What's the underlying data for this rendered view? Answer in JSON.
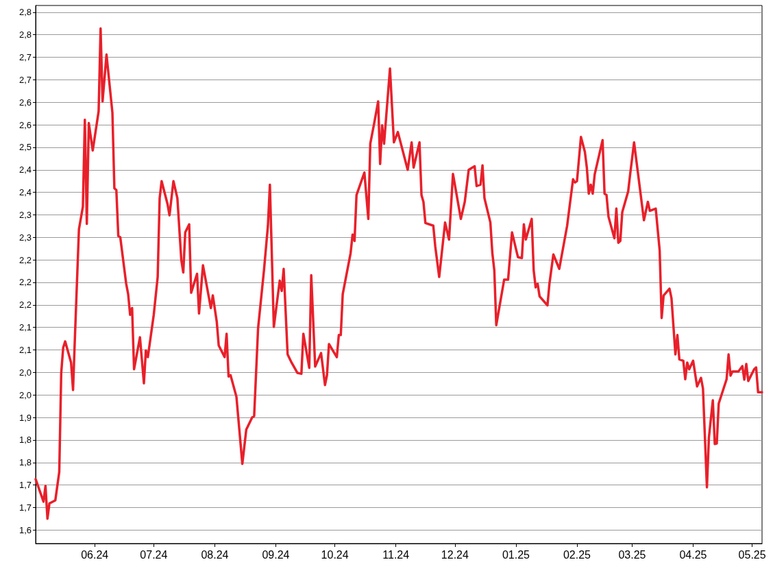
{
  "chart_data": {
    "type": "line",
    "color": "#e8202a",
    "grid": "y",
    "marker": "none",
    "line_style": "solid",
    "x": [
      "2024-05-02",
      "2024-05-06",
      "2024-05-07",
      "2024-05-08",
      "2024-05-09",
      "2024-05-12",
      "2024-05-14",
      "2024-05-15",
      "2024-05-16",
      "2024-05-17",
      "2024-05-20",
      "2024-05-21",
      "2024-05-22",
      "2024-05-24",
      "2024-05-26",
      "2024-05-27",
      "2024-05-28",
      "2024-05-29",
      "2024-05-31",
      "2024-06-03",
      "2024-06-04",
      "2024-06-05",
      "2024-06-07",
      "2024-06-10",
      "2024-06-11",
      "2024-06-12",
      "2024-06-13",
      "2024-06-14",
      "2024-06-17",
      "2024-06-18",
      "2024-06-19",
      "2024-06-20",
      "2024-06-21",
      "2024-06-24",
      "2024-06-26",
      "2024-06-27",
      "2024-06-28",
      "2024-07-01",
      "2024-07-03",
      "2024-07-04",
      "2024-07-05",
      "2024-07-08",
      "2024-07-09",
      "2024-07-11",
      "2024-07-13",
      "2024-07-15",
      "2024-07-16",
      "2024-07-17",
      "2024-07-19",
      "2024-07-20",
      "2024-07-23",
      "2024-07-24",
      "2024-07-26",
      "2024-07-30",
      "2024-07-31",
      "2024-08-02",
      "2024-08-03",
      "2024-08-06",
      "2024-08-07",
      "2024-08-08",
      "2024-08-09",
      "2024-08-12",
      "2024-08-15",
      "2024-08-17",
      "2024-08-20",
      "2024-08-21",
      "2024-08-23",
      "2024-08-26",
      "2024-08-28",
      "2024-08-29",
      "2024-08-31",
      "2024-09-03",
      "2024-09-04",
      "2024-09-05",
      "2024-09-07",
      "2024-09-09",
      "2024-09-12",
      "2024-09-14",
      "2024-09-15",
      "2024-09-18",
      "2024-09-19",
      "2024-09-21",
      "2024-09-24",
      "2024-09-26",
      "2024-09-27",
      "2024-09-28",
      "2024-10-02",
      "2024-10-03",
      "2024-10-04",
      "2024-10-05",
      "2024-10-09",
      "2024-10-10",
      "2024-10-11",
      "2024-10-12",
      "2024-10-16",
      "2024-10-18",
      "2024-10-19",
      "2024-10-21",
      "2024-10-23",
      "2024-10-24",
      "2024-10-25",
      "2024-10-26",
      "2024-10-29",
      "2024-10-31",
      "2024-11-02",
      "2024-11-07",
      "2024-11-09",
      "2024-11-10",
      "2024-11-13",
      "2024-11-14",
      "2024-11-15",
      "2024-11-16",
      "2024-11-20",
      "2024-11-21",
      "2024-11-23",
      "2024-11-26",
      "2024-11-28",
      "2024-11-30",
      "2024-12-04",
      "2024-12-06",
      "2024-12-08",
      "2024-12-11",
      "2024-12-12",
      "2024-12-14",
      "2024-12-15",
      "2024-12-16",
      "2024-12-19",
      "2024-12-20",
      "2024-12-21",
      "2024-12-22",
      "2024-12-26",
      "2024-12-28",
      "2024-12-30",
      "2025-01-02",
      "2025-01-04",
      "2025-01-05",
      "2025-01-06",
      "2025-01-09",
      "2025-01-10",
      "2025-01-11",
      "2025-01-12",
      "2025-01-13",
      "2025-01-17",
      "2025-01-18",
      "2025-01-20",
      "2025-01-23",
      "2025-01-27",
      "2025-01-30",
      "2025-01-31",
      "2025-02-01",
      "2025-02-03",
      "2025-02-05",
      "2025-02-06",
      "2025-02-07",
      "2025-02-08",
      "2025-02-09",
      "2025-02-10",
      "2025-02-14",
      "2025-02-15",
      "2025-02-16",
      "2025-02-17",
      "2025-02-20",
      "2025-02-21",
      "2025-02-22",
      "2025-02-23",
      "2025-02-24",
      "2025-02-27",
      "2025-02-28",
      "2025-03-02",
      "2025-03-07",
      "2025-03-09",
      "2025-03-10",
      "2025-03-13",
      "2025-03-15",
      "2025-03-16",
      "2025-03-17",
      "2025-03-20",
      "2025-03-21",
      "2025-03-23",
      "2025-03-24",
      "2025-03-25",
      "2025-03-27",
      "2025-03-28",
      "2025-03-29",
      "2025-03-30",
      "2025-04-01",
      "2025-04-03",
      "2025-04-05",
      "2025-04-06",
      "2025-04-08",
      "2025-04-09",
      "2025-04-11",
      "2025-04-12",
      "2025-04-13",
      "2025-04-14",
      "2025-04-18",
      "2025-04-19",
      "2025-04-20",
      "2025-04-21",
      "2025-04-24",
      "2025-04-26",
      "2025-04-27",
      "2025-04-28",
      "2025-04-29",
      "2025-05-02",
      "2025-05-03",
      "2025-05-04",
      "2025-05-06"
    ],
    "values": [
      1.763,
      1.713,
      1.748,
      1.675,
      1.709,
      1.716,
      1.779,
      1.999,
      2.055,
      2.069,
      2.022,
      1.961,
      2.083,
      2.318,
      2.368,
      2.561,
      2.33,
      2.554,
      2.493,
      2.58,
      2.764,
      2.602,
      2.706,
      2.577,
      2.409,
      2.405,
      2.303,
      2.3,
      2.197,
      2.174,
      2.128,
      2.143,
      2.007,
      2.078,
      1.976,
      2.049,
      2.034,
      2.128,
      2.212,
      2.387,
      2.425,
      2.374,
      2.349,
      2.425,
      2.387,
      2.25,
      2.222,
      2.311,
      2.329,
      2.177,
      2.219,
      2.131,
      2.238,
      2.143,
      2.171,
      2.113,
      2.06,
      2.034,
      2.086,
      1.991,
      1.994,
      1.946,
      1.797,
      1.873,
      1.9,
      1.903,
      2.098,
      2.227,
      2.326,
      2.417,
      2.101,
      2.204,
      2.181,
      2.23,
      2.04,
      2.022,
      1.999,
      1.997,
      2.086,
      2.01,
      2.216,
      2.013,
      2.043,
      1.972,
      1.994,
      2.063,
      2.034,
      2.083,
      2.083,
      2.174,
      2.265,
      2.306,
      2.292,
      2.394,
      2.444,
      2.341,
      2.508,
      2.554,
      2.602,
      2.463,
      2.549,
      2.508,
      2.675,
      2.511,
      2.534,
      2.45,
      2.511,
      2.455,
      2.511,
      2.394,
      2.379,
      2.332,
      2.326,
      2.28,
      2.212,
      2.333,
      2.295,
      2.441,
      2.341,
      2.379,
      2.45,
      2.458,
      2.414,
      2.417,
      2.46,
      2.387,
      2.333,
      2.265,
      2.227,
      2.105,
      2.206,
      2.206,
      2.311,
      2.256,
      2.254,
      2.329,
      2.295,
      2.341,
      2.227,
      2.189,
      2.197,
      2.169,
      2.149,
      2.197,
      2.262,
      2.23,
      2.326,
      2.429,
      2.422,
      2.425,
      2.523,
      2.49,
      2.455,
      2.397,
      2.417,
      2.397,
      2.44,
      2.516,
      2.397,
      2.394,
      2.346,
      2.298,
      2.364,
      2.288,
      2.292,
      2.356,
      2.402,
      2.44,
      2.511,
      2.338,
      2.379,
      2.359,
      2.364,
      2.271,
      2.121,
      2.171,
      2.186,
      2.165,
      2.04,
      2.083,
      2.029,
      2.026,
      1.985,
      2.022,
      2.007,
      2.026,
      1.969,
      1.988,
      1.964,
      1.745,
      1.855,
      1.938,
      1.841,
      1.842,
      1.931,
      1.985,
      2.04,
      1.993,
      2.002,
      2.002,
      2.014,
      1.984,
      2.019,
      1.981,
      2.007,
      2.011,
      1.956,
      1.956
    ],
    "xlim": [
      "2024-05-02",
      "2025-05-06"
    ],
    "xticks": [
      {
        "value": "2024-06-01",
        "label": "06.24"
      },
      {
        "value": "2024-07-01",
        "label": "07.24"
      },
      {
        "value": "2024-08-01",
        "label": "08.24"
      },
      {
        "value": "2024-09-01",
        "label": "09.24"
      },
      {
        "value": "2024-10-01",
        "label": "10.24"
      },
      {
        "value": "2024-11-01",
        "label": "11.24"
      },
      {
        "value": "2024-12-01",
        "label": "12.24"
      },
      {
        "value": "2025-01-01",
        "label": "01.25"
      },
      {
        "value": "2025-02-01",
        "label": "02.25"
      },
      {
        "value": "2025-03-01",
        "label": "03.25"
      },
      {
        "value": "2025-04-01",
        "label": "04.25"
      },
      {
        "value": "2025-05-01",
        "label": "05.25"
      }
    ],
    "ylim": [
      1.62,
      2.815
    ],
    "yticks": [
      {
        "value": 1.65,
        "label": "1,6"
      },
      {
        "value": 1.7,
        "label": "1,7"
      },
      {
        "value": 1.75,
        "label": "1,7"
      },
      {
        "value": 1.8,
        "label": "1,8"
      },
      {
        "value": 1.85,
        "label": "1,8"
      },
      {
        "value": 1.9,
        "label": "1,9"
      },
      {
        "value": 1.95,
        "label": "2,0"
      },
      {
        "value": 2.0,
        "label": "2,0"
      },
      {
        "value": 2.05,
        "label": "2,1"
      },
      {
        "value": 2.1,
        "label": "2,1"
      },
      {
        "value": 2.15,
        "label": "2,2"
      },
      {
        "value": 2.2,
        "label": "2,2"
      },
      {
        "value": 2.25,
        "label": "2,2"
      },
      {
        "value": 2.3,
        "label": "2,3"
      },
      {
        "value": 2.35,
        "label": "2,3"
      },
      {
        "value": 2.4,
        "label": "2,4"
      },
      {
        "value": 2.45,
        "label": "2,4"
      },
      {
        "value": 2.5,
        "label": "2,5"
      },
      {
        "value": 2.55,
        "label": "2,6"
      },
      {
        "value": 2.6,
        "label": "2,6"
      },
      {
        "value": 2.65,
        "label": "2,7"
      },
      {
        "value": 2.7,
        "label": "2,7"
      },
      {
        "value": 2.75,
        "label": "2,8"
      },
      {
        "value": 2.8,
        "label": "2,8"
      }
    ]
  }
}
